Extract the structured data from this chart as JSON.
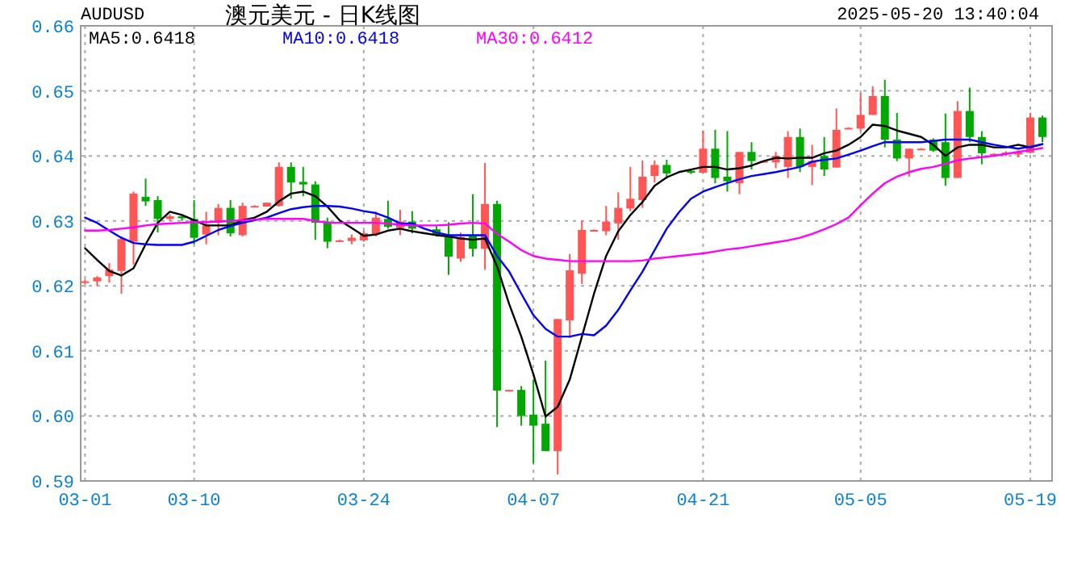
{
  "chart_data": {
    "type": "candlestick",
    "title": "澳元美元 - 日K线图",
    "ylabel": "AUDUSD",
    "annotations": [
      "2025-05-20 13:40:04"
    ],
    "categories": [
      "03-01",
      null,
      null,
      null,
      null,
      null,
      null,
      null,
      null,
      "03-10",
      null,
      null,
      null,
      null,
      null,
      null,
      null,
      null,
      null,
      null,
      null,
      null,
      null,
      "03-24",
      null,
      null,
      null,
      null,
      null,
      null,
      null,
      null,
      null,
      null,
      null,
      null,
      null,
      "04-07",
      null,
      null,
      null,
      null,
      null,
      null,
      null,
      null,
      null,
      null,
      null,
      null,
      null,
      "04-21",
      null,
      null,
      null,
      null,
      null,
      null,
      null,
      null,
      null,
      null,
      null,
      null,
      "05-05",
      null,
      null,
      null,
      null,
      null,
      null,
      null,
      null,
      null,
      null,
      null,
      null,
      null,
      "05-19",
      null
    ],
    "ohlc": [
      [
        0.6207,
        0.621,
        0.6203,
        0.6207
      ],
      [
        0.6207,
        0.6215,
        0.62,
        0.6213
      ],
      [
        0.6215,
        0.6235,
        0.6205,
        0.6225
      ],
      [
        0.6223,
        0.6276,
        0.6188,
        0.6272
      ],
      [
        0.6268,
        0.6345,
        0.6233,
        0.6342
      ],
      [
        0.6337,
        0.6365,
        0.6323,
        0.633
      ],
      [
        0.6332,
        0.6338,
        0.6282,
        0.6303
      ],
      [
        0.6303,
        0.631,
        0.63,
        0.6307
      ],
      [
        0.6307,
        0.631,
        0.63,
        0.6304
      ],
      [
        0.6303,
        0.6332,
        0.6264,
        0.6274
      ],
      [
        0.6279,
        0.6314,
        0.6264,
        0.6293
      ],
      [
        0.6297,
        0.6326,
        0.6278,
        0.632
      ],
      [
        0.632,
        0.6332,
        0.6276,
        0.6281
      ],
      [
        0.6278,
        0.6328,
        0.6276,
        0.6323
      ],
      [
        0.6322,
        0.6324,
        0.6321,
        0.6323
      ],
      [
        0.6322,
        0.6328,
        0.6322,
        0.6328
      ],
      [
        0.6323,
        0.639,
        0.6322,
        0.6383
      ],
      [
        0.6383,
        0.639,
        0.6334,
        0.6359
      ],
      [
        0.636,
        0.6383,
        0.6338,
        0.6356
      ],
      [
        0.6356,
        0.6361,
        0.6271,
        0.6297
      ],
      [
        0.6299,
        0.6305,
        0.6258,
        0.6268
      ],
      [
        0.627,
        0.6271,
        0.6269,
        0.627
      ],
      [
        0.6269,
        0.6279,
        0.6264,
        0.6274
      ],
      [
        0.627,
        0.6285,
        0.6268,
        0.6281
      ],
      [
        0.6279,
        0.6314,
        0.6276,
        0.6305
      ],
      [
        0.6303,
        0.6331,
        0.6288,
        0.6291
      ],
      [
        0.6289,
        0.6317,
        0.6278,
        0.6299
      ],
      [
        0.6299,
        0.6315,
        0.6281,
        0.6288
      ],
      null,
      [
        0.6287,
        0.6292,
        0.6276,
        0.6278
      ],
      [
        0.6278,
        0.6298,
        0.6217,
        0.6245
      ],
      [
        0.6242,
        0.6282,
        0.6237,
        0.6275
      ],
      [
        0.6278,
        0.6341,
        0.6245,
        0.6257
      ],
      [
        0.6257,
        0.6389,
        0.6225,
        0.6326
      ],
      [
        0.6326,
        0.6331,
        0.5983,
        0.6039
      ],
      [
        0.6039,
        0.604,
        0.6038,
        0.604
      ],
      [
        0.604,
        0.6046,
        0.5985,
        0.6
      ],
      [
        0.6002,
        0.6056,
        0.5927,
        0.5985
      ],
      [
        0.5988,
        0.6085,
        0.5946,
        0.5946
      ],
      [
        0.5946,
        0.6149,
        0.591,
        0.6149
      ],
      [
        0.6147,
        0.6249,
        0.612,
        0.6224
      ],
      [
        0.6219,
        0.63,
        0.6203,
        0.6286
      ],
      [
        0.6286,
        0.6287,
        0.6285,
        0.6286
      ],
      [
        0.6284,
        0.6323,
        0.6278,
        0.6299
      ],
      [
        0.6296,
        0.6344,
        0.6271,
        0.632
      ],
      [
        0.6319,
        0.6383,
        0.6315,
        0.6334
      ],
      [
        0.6332,
        0.6393,
        0.632,
        0.6368
      ],
      [
        0.6369,
        0.6393,
        0.6359,
        0.6386
      ],
      [
        0.6386,
        0.6394,
        0.6365,
        0.6373
      ],
      null,
      [
        0.6377,
        0.6378,
        0.6372,
        0.6374
      ],
      [
        0.6374,
        0.6439,
        0.6374,
        0.6411
      ],
      [
        0.6411,
        0.644,
        0.6358,
        0.6366
      ],
      [
        0.6368,
        0.6438,
        0.6345,
        0.6361
      ],
      [
        0.6358,
        0.6406,
        0.6341,
        0.6406
      ],
      [
        0.6406,
        0.6421,
        0.6379,
        0.6392
      ],
      [
        0.6392,
        0.6393,
        0.6391,
        0.6392
      ],
      [
        0.639,
        0.6406,
        0.6381,
        0.64
      ],
      [
        0.6383,
        0.6438,
        0.6366,
        0.6429
      ],
      [
        0.6429,
        0.6442,
        0.6375,
        0.6383
      ],
      [
        0.6383,
        0.6417,
        0.6355,
        0.6392
      ],
      [
        0.64,
        0.6429,
        0.6369,
        0.6379
      ],
      [
        0.6382,
        0.6473,
        0.6382,
        0.644
      ],
      [
        0.6443,
        0.6444,
        0.6442,
        0.6443
      ],
      [
        0.6442,
        0.6497,
        0.6438,
        0.6463
      ],
      [
        0.6463,
        0.6507,
        0.6463,
        0.6492
      ],
      [
        0.6492,
        0.6517,
        0.6413,
        0.6425
      ],
      [
        0.6425,
        0.6466,
        0.6392,
        0.6396
      ],
      [
        0.6396,
        0.6411,
        0.6368,
        0.6411
      ],
      [
        0.6411,
        0.6412,
        0.641,
        0.6411
      ],
      [
        0.6425,
        0.6427,
        0.6406,
        0.6408
      ],
      [
        0.6421,
        0.6465,
        0.6354,
        0.6366
      ],
      [
        0.6366,
        0.6484,
        0.6366,
        0.6469
      ],
      [
        0.6469,
        0.6505,
        0.6421,
        0.6429
      ],
      [
        0.6429,
        0.6438,
        0.6387,
        0.6404
      ],
      [
        0.6403,
        0.6404,
        0.6402,
        0.6403
      ],
      [
        0.6403,
        0.6407,
        0.64,
        0.6405
      ],
      [
        0.6402,
        0.6408,
        0.6398,
        0.6406
      ],
      [
        0.6405,
        0.6466,
        0.6404,
        0.6459
      ],
      [
        0.6459,
        0.6462,
        0.6421,
        0.6429
      ]
    ],
    "colors": [
      "#ff5555",
      "#ff5555",
      "#ff5555",
      "#ff5555",
      "#ff5555",
      "#00a800",
      "#00a800",
      "#ff5555",
      "#00a800",
      "#00a800",
      "#ff5555",
      "#ff5555",
      "#00a800",
      "#ff5555",
      "#ff5555",
      "#ff5555",
      "#ff5555",
      "#00a800",
      "#00a800",
      "#00a800",
      "#00a800",
      "#ff5555",
      "#ff5555",
      "#ff5555",
      "#ff5555",
      "#00a800",
      "#ff5555",
      "#00a800",
      null,
      "#00a800",
      "#00a800",
      "#ff5555",
      "#00a800",
      "#ff5555",
      "#00a800",
      "#ff5555",
      "#00a800",
      "#00a800",
      "#00a800",
      "#ff5555",
      "#ff5555",
      "#ff5555",
      "#ff5555",
      "#ff5555",
      "#ff5555",
      "#ff5555",
      "#ff5555",
      "#ff5555",
      "#00a800",
      null,
      "#00a800",
      "#ff5555",
      "#00a800",
      "#00a800",
      "#ff5555",
      "#00a800",
      "#ff5555",
      "#ff5555",
      "#ff5555",
      "#00a800",
      "#ff5555",
      "#00a800",
      "#ff5555",
      "#ff5555",
      "#ff5555",
      "#ff5555",
      "#00a800",
      "#00a800",
      "#ff5555",
      "#ff5555",
      "#00a800",
      "#00a800",
      "#ff5555",
      "#00a800",
      "#00a800",
      "#ff5555",
      "#ff5555",
      "#ff5555",
      "#ff5555",
      "#00a800"
    ],
    "series": [
      {
        "type": "line",
        "name": "MA5:0.6418",
        "color": "#000000",
        "values": [
          0.6258,
          0.624,
          0.6223,
          0.6216,
          0.6227,
          0.6264,
          0.6297,
          0.6314,
          0.6309,
          0.6301,
          0.6293,
          0.6293,
          0.6293,
          0.6301,
          0.6305,
          0.6314,
          0.633,
          0.6342,
          0.6345,
          0.6338,
          0.6322,
          0.6301,
          0.6289,
          0.6277,
          0.6279,
          0.6285,
          0.6288,
          0.6284,
          0.6281,
          0.6278,
          0.6276,
          0.6273,
          0.6271,
          0.6273,
          0.623,
          0.6172,
          0.6122,
          0.6064,
          0.5999,
          0.6014,
          0.6056,
          0.6122,
          0.6188,
          0.6246,
          0.6284,
          0.6309,
          0.6329,
          0.6354,
          0.6367,
          0.6375,
          0.6379,
          0.6383,
          0.6383,
          0.6379,
          0.6381,
          0.6385,
          0.6392,
          0.6397,
          0.6396,
          0.6397,
          0.6397,
          0.6404,
          0.6408,
          0.6417,
          0.6429,
          0.6448,
          0.6446,
          0.6439,
          0.6434,
          0.6429,
          0.6417,
          0.64,
          0.6413,
          0.6417,
          0.6417,
          0.6413,
          0.6413,
          0.6417,
          0.6413,
          0.6418
        ]
      },
      {
        "type": "line",
        "name": "MA10:0.6418",
        "color": "#0000ff",
        "values": [
          0.6305,
          0.6297,
          0.6285,
          0.6274,
          0.6266,
          0.6264,
          0.6263,
          0.6263,
          0.6263,
          0.6268,
          0.6277,
          0.6286,
          0.6292,
          0.6297,
          0.6301,
          0.6305,
          0.6312,
          0.6318,
          0.6321,
          0.6323,
          0.6323,
          0.6322,
          0.6319,
          0.6315,
          0.6312,
          0.6305,
          0.6296,
          0.6296,
          0.6288,
          0.6282,
          0.6278,
          0.6278,
          0.6278,
          0.6278,
          0.6246,
          0.6222,
          0.6188,
          0.6155,
          0.6134,
          0.6122,
          0.6122,
          0.6126,
          0.6124,
          0.6139,
          0.6163,
          0.6193,
          0.6222,
          0.6255,
          0.6288,
          0.6313,
          0.6334,
          0.6345,
          0.6352,
          0.6358,
          0.6364,
          0.6369,
          0.6372,
          0.6375,
          0.6379,
          0.6383,
          0.6391,
          0.6394,
          0.6396,
          0.6402,
          0.6408,
          0.6415,
          0.6421,
          0.6421,
          0.6421,
          0.6421,
          0.6423,
          0.6425,
          0.6425,
          0.6425,
          0.6421,
          0.6417,
          0.6414,
          0.6411,
          0.6414,
          0.6418
        ]
      },
      {
        "type": "line",
        "name": "MA30:0.6412",
        "color": "#ff00ff",
        "values": [
          0.6285,
          0.6285,
          0.6286,
          0.6288,
          0.629,
          0.6293,
          0.6295,
          0.6296,
          0.6297,
          0.6298,
          0.6298,
          0.6299,
          0.63,
          0.6301,
          0.6302,
          0.6303,
          0.6303,
          0.6303,
          0.6303,
          0.63,
          0.6297,
          0.6297,
          0.6297,
          0.6297,
          0.6297,
          0.6296,
          0.6294,
          0.6293,
          0.6293,
          0.6293,
          0.6294,
          0.6296,
          0.6297,
          0.6296,
          0.628,
          0.6268,
          0.6255,
          0.6246,
          0.6242,
          0.624,
          0.6238,
          0.6238,
          0.6238,
          0.6238,
          0.6238,
          0.6238,
          0.6239,
          0.6242,
          0.6244,
          0.6246,
          0.6248,
          0.625,
          0.6253,
          0.6256,
          0.6258,
          0.6261,
          0.6264,
          0.6267,
          0.627,
          0.6274,
          0.628,
          0.6287,
          0.6295,
          0.6305,
          0.6324,
          0.6342,
          0.6358,
          0.6368,
          0.6375,
          0.638,
          0.6383,
          0.6388,
          0.6393,
          0.6396,
          0.6398,
          0.64,
          0.6403,
          0.6406,
          0.6409,
          0.6412
        ]
      }
    ],
    "ylim": [
      0.59,
      0.66
    ],
    "yticks": [
      0.59,
      {
        "value": 0.6,
        "label": "0.60"
      },
      0.61,
      0.62,
      0.63,
      0.64,
      0.65,
      {
        "value": 0.66,
        "label": "0.66"
      }
    ],
    "grid": true,
    "legend": "top left"
  }
}
